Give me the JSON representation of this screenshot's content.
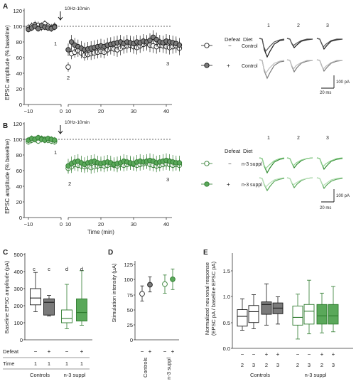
{
  "colors": {
    "black": "#1a1a1a",
    "gray": "#7a7a7a",
    "lightgray": "#bdbdbd",
    "green": "#2e8b2e",
    "lightgreen": "#7cc87c",
    "darkgreen": "#2d7a2d"
  },
  "panelA": {
    "letter": "A",
    "ylabel": "EPSC amplitude (% baseline)",
    "stim_label": "10Hz-10min",
    "yticks": [
      "0",
      "20",
      "40",
      "60",
      "80",
      "100",
      "120"
    ],
    "xticks": [
      "−10",
      "0",
      "10",
      "20",
      "30",
      "40"
    ],
    "timepoints": [
      "1",
      "2",
      "3"
    ],
    "legend": {
      "defeat_header": "Defeat",
      "diet_header": "Diet",
      "rows": [
        {
          "defeat": "−",
          "diet": "Control"
        },
        {
          "defeat": "+",
          "diet": "Control"
        }
      ]
    },
    "scale": {
      "pa": "100 pA",
      "ms": "20 ms"
    }
  },
  "panelB": {
    "letter": "B",
    "ylabel": "EPSC amplitude (% baseline)",
    "stim_label": "10Hz-10min",
    "yticks": [
      "0",
      "20",
      "40",
      "60",
      "80",
      "100",
      "120"
    ],
    "xticks": [
      "−10",
      "0",
      "10",
      "20",
      "30",
      "40"
    ],
    "xlabel": "Time (min)",
    "timepoints": [
      "1",
      "2",
      "3"
    ],
    "legend": {
      "defeat_header": "Defeat",
      "diet_header": "Diet",
      "rows": [
        {
          "defeat": "−",
          "diet": "n-3 suppl"
        },
        {
          "defeat": "+",
          "diet": "n-3 suppl"
        }
      ]
    },
    "scale": {
      "pa": "100 pA",
      "ms": "20 ms"
    }
  },
  "panelC": {
    "letter": "C",
    "ylabel": "Baseline EPSC amplitude (pA)",
    "yticks": [
      "0",
      "100",
      "200",
      "300",
      "400",
      "500"
    ],
    "row_defeat_label": "Defeat",
    "row_time_label": "Time",
    "defeat_marks": [
      "−",
      "+",
      "−",
      "+"
    ],
    "time_marks": [
      "1",
      "1",
      "1",
      "1"
    ],
    "letters": [
      "c",
      "c",
      "d",
      "d"
    ],
    "group_labels": [
      "Controls",
      "n-3 suppl"
    ]
  },
  "panelD": {
    "letter": "D",
    "ylabel": "Stimulation intensity (µA)",
    "yticks": [
      "0",
      "25",
      "50",
      "75",
      "100",
      "125"
    ],
    "defeat_marks": [
      "−",
      "+",
      "−",
      "+"
    ],
    "group_labels": [
      "Controls",
      "n-3 suppl"
    ]
  },
  "panelE": {
    "letter": "E",
    "ylabel": "Normalized neuronal response",
    "ylabel2": "(EPSC pA / baseline EPSC pA)",
    "yticks": [
      "0.0",
      "0.5",
      "1.0",
      "1.5"
    ],
    "defeat_marks": [
      "−",
      "−",
      "+",
      "+",
      "−",
      "−",
      "+",
      "+"
    ],
    "time_marks": [
      "2",
      "3",
      "2",
      "3",
      "2",
      "3",
      "2",
      "3"
    ],
    "group_labels": [
      "Controls",
      "n-3 suppl"
    ]
  },
  "chart_data": [
    {
      "type": "scatter",
      "panel": "A",
      "xlim": [
        -11,
        45
      ],
      "ylim": [
        0,
        120
      ],
      "reference_line": 100,
      "stimulation_time": -1,
      "series": [
        {
          "style": "open-black",
          "x": [
            -10,
            -9,
            -8,
            -7,
            -6,
            -5,
            -4,
            -3,
            -2,
            10,
            11,
            12,
            13,
            14,
            15,
            16,
            17,
            18,
            19,
            20,
            21,
            22,
            23,
            24,
            25,
            26,
            27,
            28,
            29,
            30,
            31,
            32,
            33,
            34,
            35,
            36,
            37,
            38,
            39,
            40,
            41,
            42,
            43,
            44
          ],
          "y": [
            98,
            100,
            102,
            101,
            99,
            103,
            100,
            98,
            100,
            48,
            65,
            67,
            69,
            66,
            63,
            64,
            65,
            66,
            67,
            68,
            67,
            70,
            72,
            71,
            70,
            72,
            74,
            75,
            76,
            74,
            73,
            75,
            77,
            78,
            76,
            75,
            74,
            76,
            75,
            74,
            73,
            74,
            75,
            72
          ],
          "err": [
            5,
            5,
            5,
            5,
            5,
            5,
            5,
            5,
            5,
            6,
            7,
            7,
            8,
            7,
            7,
            7,
            8,
            8,
            8,
            8,
            8,
            8,
            8,
            9,
            9,
            9,
            9,
            9,
            9,
            9,
            9,
            9,
            9,
            9,
            9,
            9,
            9,
            9,
            9,
            9,
            9,
            9,
            9,
            9
          ]
        },
        {
          "style": "filled-gray",
          "x": [
            -10,
            -9,
            -8,
            -7,
            -6,
            -5,
            -4,
            -3,
            -2,
            10,
            11,
            12,
            13,
            14,
            15,
            16,
            17,
            18,
            19,
            20,
            21,
            22,
            23,
            24,
            25,
            26,
            27,
            28,
            29,
            30,
            31,
            32,
            33,
            34,
            35,
            36,
            37,
            38,
            39,
            40,
            41,
            42,
            43,
            44
          ],
          "y": [
            96,
            98,
            100,
            97,
            101,
            99,
            98,
            97,
            99,
            70,
            80,
            76,
            74,
            72,
            70,
            71,
            72,
            73,
            74,
            75,
            74,
            76,
            77,
            78,
            79,
            80,
            78,
            80,
            79,
            78,
            80,
            79,
            81,
            80,
            82,
            86,
            83,
            80,
            79,
            81,
            80,
            79,
            78,
            76
          ],
          "err": [
            4,
            4,
            4,
            4,
            4,
            4,
            4,
            4,
            4,
            8,
            9,
            9,
            9,
            9,
            9,
            9,
            9,
            9,
            9,
            9,
            9,
            9,
            9,
            9,
            9,
            9,
            9,
            9,
            9,
            9,
            9,
            9,
            9,
            9,
            9,
            9,
            9,
            9,
            9,
            9,
            9,
            9,
            9,
            9
          ]
        }
      ]
    },
    {
      "type": "scatter",
      "panel": "B",
      "xlim": [
        -11,
        45
      ],
      "ylim": [
        0,
        120
      ],
      "reference_line": 100,
      "stimulation_time": -1,
      "series": [
        {
          "style": "open-green",
          "x": [
            -10,
            -9,
            -8,
            -7,
            -6,
            -5,
            -4,
            -3,
            -2,
            10,
            11,
            12,
            13,
            14,
            15,
            16,
            17,
            18,
            19,
            20,
            21,
            22,
            23,
            24,
            25,
            26,
            27,
            28,
            29,
            30,
            31,
            32,
            33,
            34,
            35,
            36,
            37,
            38,
            39,
            40,
            41,
            42,
            43,
            44
          ],
          "y": [
            97,
            99,
            100,
            98,
            101,
            100,
            99,
            98,
            97,
            63,
            65,
            68,
            67,
            66,
            65,
            66,
            64,
            65,
            66,
            67,
            66,
            67,
            68,
            67,
            66,
            68,
            67,
            68,
            69,
            68,
            67,
            68,
            69,
            70,
            68,
            67,
            66,
            67,
            68,
            69,
            68,
            67,
            68,
            67
          ],
          "err": [
            4,
            4,
            4,
            4,
            4,
            4,
            4,
            4,
            4,
            7,
            8,
            8,
            8,
            8,
            8,
            8,
            8,
            8,
            8,
            8,
            8,
            8,
            8,
            8,
            8,
            8,
            8,
            8,
            8,
            8,
            8,
            8,
            8,
            8,
            8,
            8,
            8,
            8,
            8,
            8,
            8,
            8,
            8,
            8
          ]
        },
        {
          "style": "filled-green",
          "x": [
            -10,
            -9,
            -8,
            -7,
            -6,
            -5,
            -4,
            -3,
            -2,
            10,
            11,
            12,
            13,
            14,
            15,
            16,
            17,
            18,
            19,
            20,
            21,
            22,
            23,
            24,
            25,
            26,
            27,
            28,
            29,
            30,
            31,
            32,
            33,
            34,
            35,
            36,
            37,
            38,
            39,
            40,
            41,
            42,
            43,
            44
          ],
          "y": [
            99,
            101,
            100,
            102,
            100,
            99,
            101,
            100,
            99,
            66,
            69,
            71,
            72,
            70,
            68,
            70,
            71,
            72,
            70,
            69,
            70,
            71,
            70,
            68,
            69,
            70,
            72,
            71,
            70,
            69,
            71,
            72,
            71,
            72,
            73,
            72,
            70,
            71,
            72,
            73,
            72,
            71,
            70,
            70
          ],
          "err": [
            4,
            4,
            4,
            4,
            4,
            4,
            4,
            4,
            4,
            9,
            9,
            9,
            9,
            9,
            9,
            9,
            9,
            9,
            9,
            9,
            9,
            9,
            9,
            9,
            9,
            9,
            9,
            9,
            9,
            9,
            9,
            9,
            9,
            9,
            9,
            9,
            9,
            9,
            9,
            9,
            9,
            9,
            9,
            9
          ]
        }
      ]
    },
    {
      "type": "box",
      "panel": "C",
      "ylim": [
        0,
        500
      ],
      "boxes": [
        {
          "style": "open-black",
          "min": 165,
          "q1": 205,
          "median": 245,
          "q3": 300,
          "max": 395
        },
        {
          "style": "filled-gray",
          "min": 140,
          "q1": 145,
          "median": 220,
          "q3": 240,
          "max": 260
        },
        {
          "style": "open-green",
          "min": 65,
          "q1": 100,
          "median": 125,
          "q3": 175,
          "max": 325
        },
        {
          "style": "filled-green",
          "min": 85,
          "q1": 110,
          "median": 160,
          "q3": 240,
          "max": 405
        }
      ]
    },
    {
      "type": "scatter",
      "panel": "D",
      "ylim": [
        0,
        125
      ],
      "points": [
        {
          "style": "open-black",
          "y": 76,
          "err_low": 12,
          "err_high": 13
        },
        {
          "style": "filled-gray",
          "y": 91,
          "err_low": 12,
          "err_high": 13
        },
        {
          "style": "open-green",
          "y": 92,
          "err_low": 15,
          "err_high": 15
        },
        {
          "style": "filled-green",
          "y": 100,
          "err_low": 17,
          "err_high": 17
        }
      ]
    },
    {
      "type": "box",
      "panel": "E",
      "ylim": [
        0,
        1.5
      ],
      "boxes": [
        {
          "style": "open-black",
          "min": 0.35,
          "q1": 0.43,
          "median": 0.62,
          "q3": 0.75,
          "max": 0.96
        },
        {
          "style": "open-black",
          "min": 0.38,
          "q1": 0.5,
          "median": 0.71,
          "q3": 0.83,
          "max": 1.04
        },
        {
          "style": "filled-gray",
          "min": 0.45,
          "q1": 0.66,
          "median": 0.85,
          "q3": 0.9,
          "max": 1.25
        },
        {
          "style": "filled-gray",
          "min": 0.47,
          "q1": 0.67,
          "median": 0.78,
          "q3": 0.88,
          "max": 1.0
        },
        {
          "style": "open-green",
          "min": 0.18,
          "q1": 0.45,
          "median": 0.6,
          "q3": 0.82,
          "max": 1.05
        },
        {
          "style": "open-green",
          "min": 0.28,
          "q1": 0.47,
          "median": 0.72,
          "q3": 0.85,
          "max": 1.32
        },
        {
          "style": "filled-green",
          "min": 0.3,
          "q1": 0.47,
          "median": 0.63,
          "q3": 0.85,
          "max": 1.07
        },
        {
          "style": "filled-green",
          "min": 0.32,
          "q1": 0.47,
          "median": 0.63,
          "q3": 0.85,
          "max": 1.2
        }
      ]
    }
  ]
}
